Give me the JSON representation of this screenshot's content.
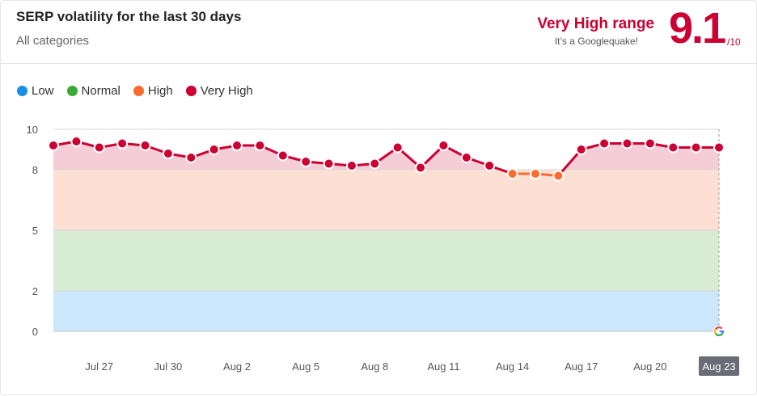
{
  "header": {
    "title": "SERP volatility for the last 30 days",
    "subtitle": "All categories",
    "range_label": "Very High range",
    "range_desc": "It’s a Googlequake!",
    "score": "9.1",
    "score_max": "/10"
  },
  "colors": {
    "low": "#1a8fe8",
    "normal": "#3aaa35",
    "high": "#ff6b2c",
    "very_high": "#cc0033",
    "band_low": "#cce6fb",
    "band_normal": "#d8ebd3",
    "band_high": "#fde0d3",
    "band_very_high": "#f4cdd6"
  },
  "legend": [
    {
      "label": "Low",
      "color": "#1a8fe8"
    },
    {
      "label": "Normal",
      "color": "#3aaa35"
    },
    {
      "label": "High",
      "color": "#ff6b2c"
    },
    {
      "label": "Very High",
      "color": "#cc0033"
    }
  ],
  "chart_data": {
    "type": "line",
    "title": "SERP volatility for the last 30 days",
    "subtitle": "All categories",
    "ylim": [
      0,
      10
    ],
    "yticks": [
      0,
      2,
      5,
      8,
      10
    ],
    "bands": [
      {
        "label": "Low",
        "from": 0,
        "to": 2
      },
      {
        "label": "Normal",
        "from": 2,
        "to": 5
      },
      {
        "label": "High",
        "from": 5,
        "to": 8
      },
      {
        "label": "Very High",
        "from": 8,
        "to": 10
      }
    ],
    "x_tick_labels": [
      "Jul 27",
      "Jul 30",
      "Aug 2",
      "Aug 5",
      "Aug 8",
      "Aug 11",
      "Aug 14",
      "Aug 17",
      "Aug 20",
      "Aug 23"
    ],
    "x_tick_index": [
      2,
      5,
      8,
      11,
      14,
      17,
      20,
      23,
      26,
      29
    ],
    "active_label": "Aug 23",
    "x": [
      "Jul 25",
      "Jul 26",
      "Jul 27",
      "Jul 28",
      "Jul 29",
      "Jul 30",
      "Jul 31",
      "Aug 1",
      "Aug 2",
      "Aug 3",
      "Aug 4",
      "Aug 5",
      "Aug 6",
      "Aug 7",
      "Aug 8",
      "Aug 9",
      "Aug 10",
      "Aug 11",
      "Aug 12",
      "Aug 13",
      "Aug 14",
      "Aug 15",
      "Aug 16",
      "Aug 17",
      "Aug 18",
      "Aug 19",
      "Aug 20",
      "Aug 21",
      "Aug 22",
      "Aug 23"
    ],
    "values": [
      9.2,
      9.4,
      9.1,
      9.3,
      9.2,
      8.8,
      8.6,
      9.0,
      9.2,
      9.2,
      8.7,
      8.4,
      8.3,
      8.2,
      8.3,
      9.1,
      8.1,
      9.2,
      8.6,
      8.2,
      7.8,
      7.8,
      7.7,
      9.0,
      9.3,
      9.3,
      9.3,
      9.1,
      9.1,
      9.1
    ],
    "grid": true
  }
}
